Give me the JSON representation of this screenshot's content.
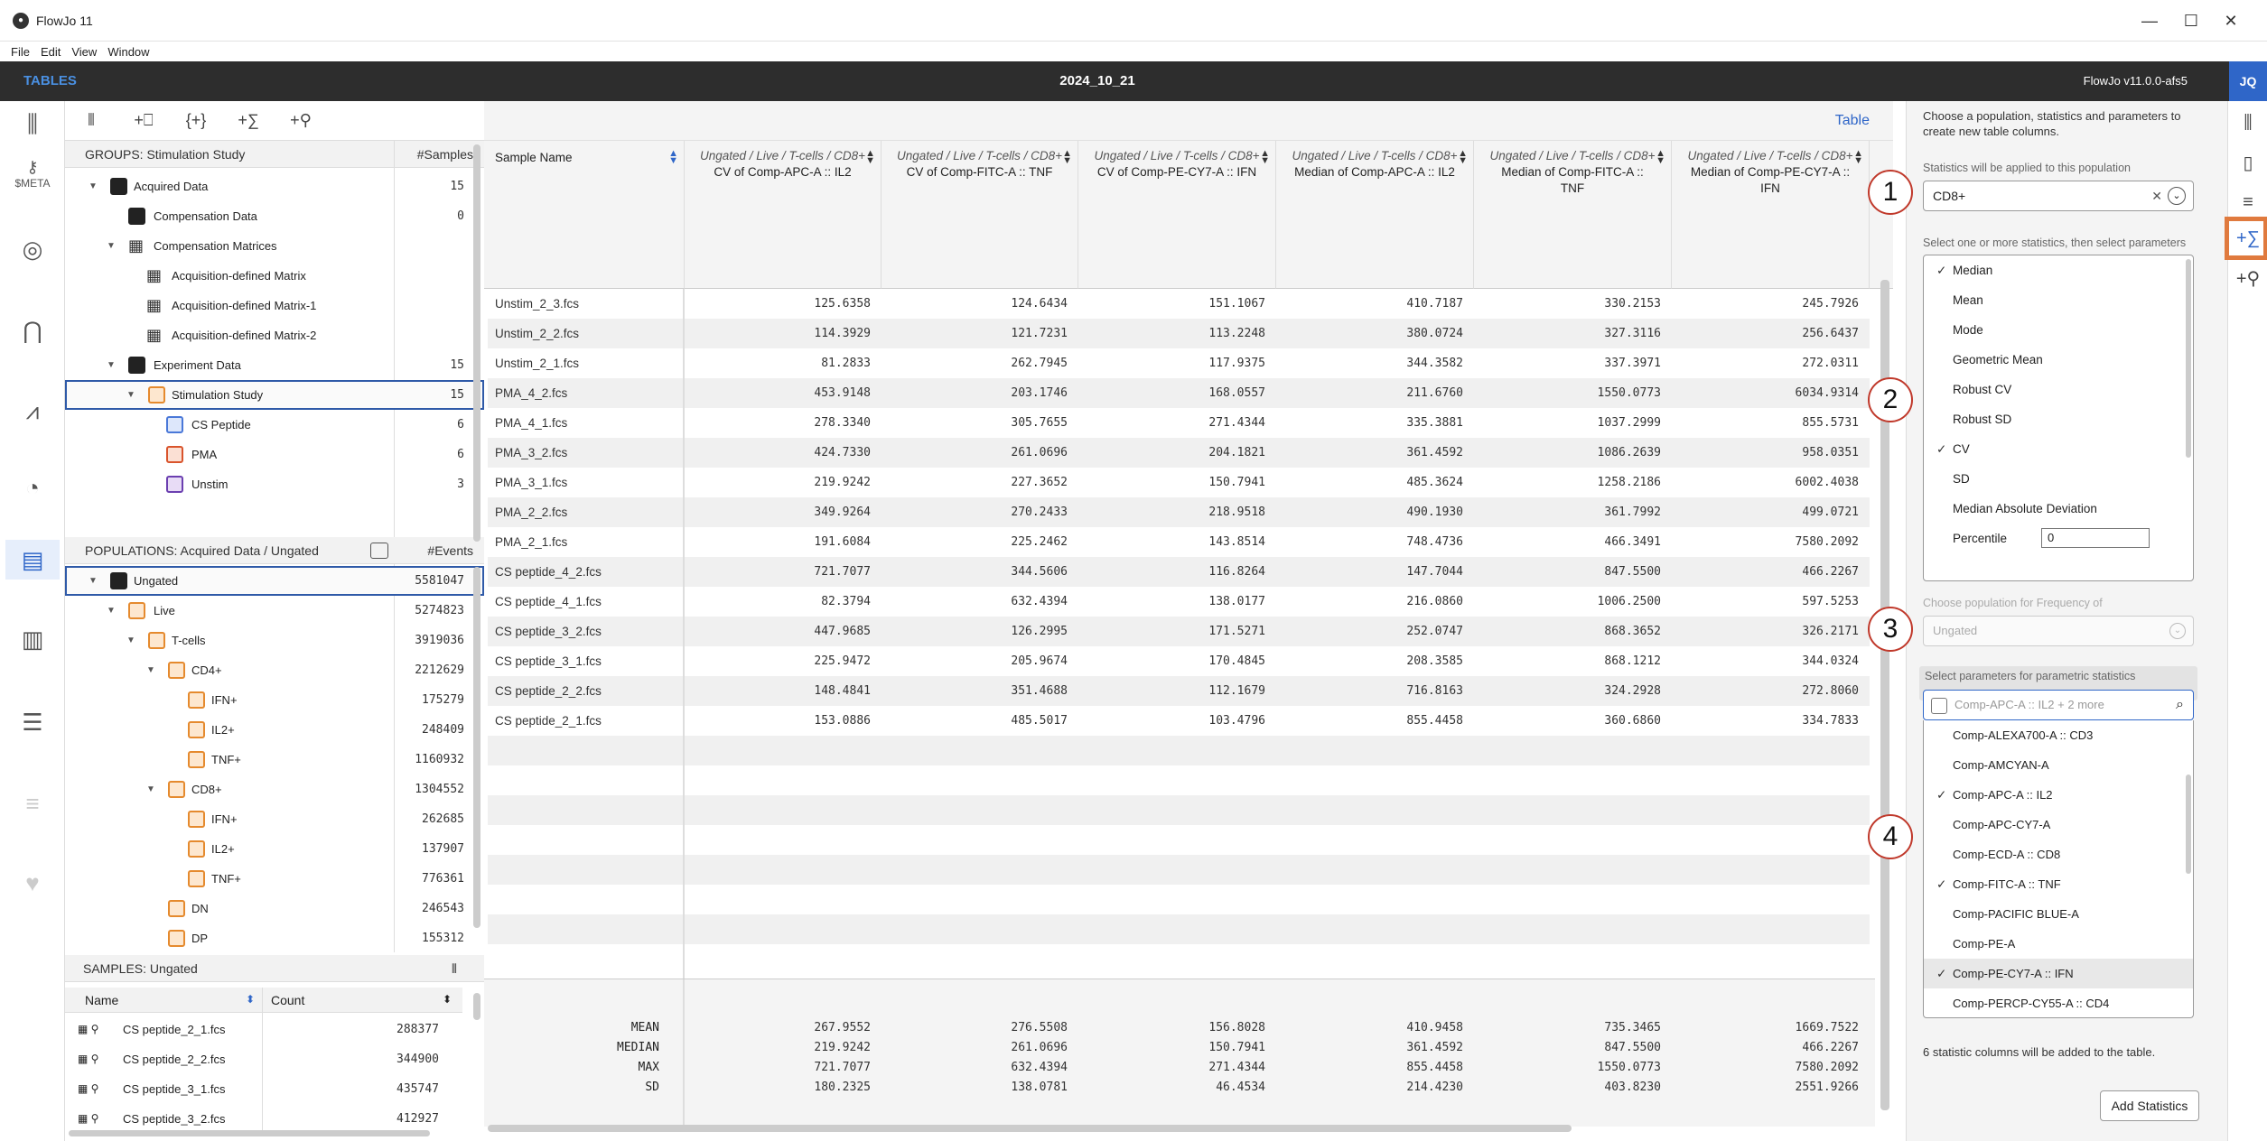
{
  "app": {
    "title": "FlowJo 11",
    "menus": [
      "File",
      "Edit",
      "View",
      "Window"
    ]
  },
  "topbar": {
    "section": "TABLES",
    "workspace": "2024_10_21",
    "version": "FlowJo v11.0.0-afs5",
    "user": "JQ"
  },
  "sidebar": {
    "meta_label": "$META",
    "icons": [
      "layout-icon",
      "key-icon",
      "tube-icon",
      "histogram-icon",
      "graph-icon",
      "plot-icon",
      "table-icon",
      "bar-chart-icon",
      "report-icon",
      "list-icon",
      "heart-icon"
    ]
  },
  "groups": {
    "header": "GROUPS: Stimulation Study",
    "count_header": "#Samples",
    "rows": [
      {
        "name": "Acquired Data",
        "count": "15"
      },
      {
        "name": "Compensation Data",
        "count": "0"
      },
      {
        "name": "Compensation Matrices",
        "count": ""
      },
      {
        "name": "Acquisition-defined Matrix",
        "count": ""
      },
      {
        "name": "Acquisition-defined Matrix-1",
        "count": ""
      },
      {
        "name": "Acquisition-defined Matrix-2",
        "count": ""
      },
      {
        "name": "Experiment Data",
        "count": "15"
      },
      {
        "name": "Stimulation Study",
        "count": "15"
      },
      {
        "name": "CS Peptide",
        "count": "6"
      },
      {
        "name": "PMA",
        "count": "6"
      },
      {
        "name": "Unstim",
        "count": "3"
      }
    ]
  },
  "populations": {
    "header": "POPULATIONS: Acquired Data / Ungated",
    "count_header": "#Events",
    "rows": [
      {
        "name": "Ungated",
        "count": "5581047"
      },
      {
        "name": "Live",
        "count": "5274823"
      },
      {
        "name": "T-cells",
        "count": "3919036"
      },
      {
        "name": "CD4+",
        "count": "2212629"
      },
      {
        "name": "IFN+",
        "count": "175279"
      },
      {
        "name": "IL2+",
        "count": "248409"
      },
      {
        "name": "TNF+",
        "count": "1160932"
      },
      {
        "name": "CD8+",
        "count": "1304552"
      },
      {
        "name": "IFN+",
        "count": "262685"
      },
      {
        "name": "IL2+",
        "count": "137907"
      },
      {
        "name": "TNF+",
        "count": "776361"
      },
      {
        "name": "DN",
        "count": "246543"
      },
      {
        "name": "DP",
        "count": "155312"
      }
    ]
  },
  "samples": {
    "header": "SAMPLES: Ungated",
    "col_name": "Name",
    "col_count": "Count",
    "rows": [
      {
        "name": "CS peptide_2_1.fcs",
        "count": "288377"
      },
      {
        "name": "CS peptide_2_2.fcs",
        "count": "344900"
      },
      {
        "name": "CS peptide_3_1.fcs",
        "count": "435747"
      },
      {
        "name": "CS peptide_3_2.fcs",
        "count": "412927"
      }
    ]
  },
  "table": {
    "link": "Table",
    "sample_col": "Sample Name",
    "columns": [
      {
        "group": "Ungated / Live / T-cells / CD8+",
        "stat": "CV of Comp-APC-A :: IL2"
      },
      {
        "group": "Ungated / Live / T-cells / CD8+",
        "stat": "CV of Comp-FITC-A :: TNF"
      },
      {
        "group": "Ungated / Live / T-cells / CD8+",
        "stat": "CV of Comp-PE-CY7-A :: IFN"
      },
      {
        "group": "Ungated / Live / T-cells / CD8+",
        "stat": "Median of Comp-APC-A :: IL2"
      },
      {
        "group": "Ungated / Live / T-cells / CD8+",
        "stat": "Median of Comp-FITC-A ::\nTNF"
      },
      {
        "group": "Ungated / Live / T-cells / CD8+",
        "stat": "Median of Comp-PE-CY7-A ::\nIFN"
      }
    ],
    "rows": [
      {
        "name": "Unstim_2_3.fcs",
        "v": [
          "125.6358",
          "124.6434",
          "151.1067",
          "410.7187",
          "330.2153",
          "245.7926"
        ]
      },
      {
        "name": "Unstim_2_2.fcs",
        "v": [
          "114.3929",
          "121.7231",
          "113.2248",
          "380.0724",
          "327.3116",
          "256.6437"
        ]
      },
      {
        "name": "Unstim_2_1.fcs",
        "v": [
          "81.2833",
          "262.7945",
          "117.9375",
          "344.3582",
          "337.3971",
          "272.0311"
        ]
      },
      {
        "name": "PMA_4_2.fcs",
        "v": [
          "453.9148",
          "203.1746",
          "168.0557",
          "211.6760",
          "1550.0773",
          "6034.9314"
        ]
      },
      {
        "name": "PMA_4_1.fcs",
        "v": [
          "278.3340",
          "305.7655",
          "271.4344",
          "335.3881",
          "1037.2999",
          "855.5731"
        ]
      },
      {
        "name": "PMA_3_2.fcs",
        "v": [
          "424.7330",
          "261.0696",
          "204.1821",
          "361.4592",
          "1086.2639",
          "958.0351"
        ]
      },
      {
        "name": "PMA_3_1.fcs",
        "v": [
          "219.9242",
          "227.3652",
          "150.7941",
          "485.3624",
          "1258.2186",
          "6002.4038"
        ]
      },
      {
        "name": "PMA_2_2.fcs",
        "v": [
          "349.9264",
          "270.2433",
          "218.9518",
          "490.1930",
          "361.7992",
          "499.0721"
        ]
      },
      {
        "name": "PMA_2_1.fcs",
        "v": [
          "191.6084",
          "225.2462",
          "143.8514",
          "748.4736",
          "466.3491",
          "7580.2092"
        ]
      },
      {
        "name": "CS peptide_4_2.fcs",
        "v": [
          "721.7077",
          "344.5606",
          "116.8264",
          "147.7044",
          "847.5500",
          "466.2267"
        ]
      },
      {
        "name": "CS peptide_4_1.fcs",
        "v": [
          "82.3794",
          "632.4394",
          "138.0177",
          "216.0860",
          "1006.2500",
          "597.5253"
        ]
      },
      {
        "name": "CS peptide_3_2.fcs",
        "v": [
          "447.9685",
          "126.2995",
          "171.5271",
          "252.0747",
          "868.3652",
          "326.2171"
        ]
      },
      {
        "name": "CS peptide_3_1.fcs",
        "v": [
          "225.9472",
          "205.9674",
          "170.4845",
          "208.3585",
          "868.1212",
          "344.0324"
        ]
      },
      {
        "name": "CS peptide_2_2.fcs",
        "v": [
          "148.4841",
          "351.4688",
          "112.1679",
          "716.8163",
          "324.2928",
          "272.8060"
        ]
      },
      {
        "name": "CS peptide_2_1.fcs",
        "v": [
          "153.0886",
          "485.5017",
          "103.4796",
          "855.4458",
          "360.6860",
          "334.7833"
        ]
      }
    ],
    "footer": [
      {
        "label": "MEAN",
        "v": [
          "267.9552",
          "276.5508",
          "156.8028",
          "410.9458",
          "735.3465",
          "1669.7522"
        ]
      },
      {
        "label": "MEDIAN",
        "v": [
          "219.9242",
          "261.0696",
          "150.7941",
          "361.4592",
          "847.5500",
          "466.2267"
        ]
      },
      {
        "label": "MAX",
        "v": [
          "721.7077",
          "632.4394",
          "271.4344",
          "855.4458",
          "1550.0773",
          "7580.2092"
        ]
      },
      {
        "label": "SD",
        "v": [
          "180.2325",
          "138.0781",
          "46.4534",
          "214.4230",
          "403.8230",
          "2551.9266"
        ]
      }
    ]
  },
  "statpanel": {
    "intro": "Choose a population, statistics and parameters to create new table columns.",
    "pop_label": "Statistics will be applied to this population",
    "pop_value": "CD8+",
    "stats_label": "Select one or more statistics, then select parameters",
    "stats": [
      {
        "name": "Median",
        "checked": true
      },
      {
        "name": "Mean",
        "checked": false
      },
      {
        "name": "Mode",
        "checked": false
      },
      {
        "name": "Geometric Mean",
        "checked": false
      },
      {
        "name": "Robust CV",
        "checked": false
      },
      {
        "name": "Robust SD",
        "checked": false
      },
      {
        "name": "CV",
        "checked": true
      },
      {
        "name": "SD",
        "checked": false
      },
      {
        "name": "Median Absolute Deviation",
        "checked": false
      },
      {
        "name": "Percentile",
        "checked": false
      }
    ],
    "percentile_value": "0",
    "freq_label": "Choose population for Frequency of",
    "freq_value": "Ungated",
    "params_label": "Select parameters for parametric statistics",
    "params_placeholder": "Comp-APC-A :: IL2 + 2 more",
    "params": [
      {
        "name": "Comp-ALEXA700-A :: CD3",
        "checked": false
      },
      {
        "name": "Comp-AMCYAN-A",
        "checked": false
      },
      {
        "name": "Comp-APC-A :: IL2",
        "checked": true
      },
      {
        "name": "Comp-APC-CY7-A",
        "checked": false
      },
      {
        "name": "Comp-ECD-A :: CD8",
        "checked": false
      },
      {
        "name": "Comp-FITC-A :: TNF",
        "checked": true
      },
      {
        "name": "Comp-PACIFIC BLUE-A",
        "checked": false
      },
      {
        "name": "Comp-PE-A",
        "checked": false
      },
      {
        "name": "Comp-PE-CY7-A :: IFN",
        "checked": true
      },
      {
        "name": "Comp-PERCP-CY55-A :: CD4",
        "checked": false
      }
    ],
    "summary": "6 statistic columns will be added to the table.",
    "add_button": "Add Statistics",
    "callouts": [
      "1",
      "2",
      "3",
      "4"
    ]
  }
}
